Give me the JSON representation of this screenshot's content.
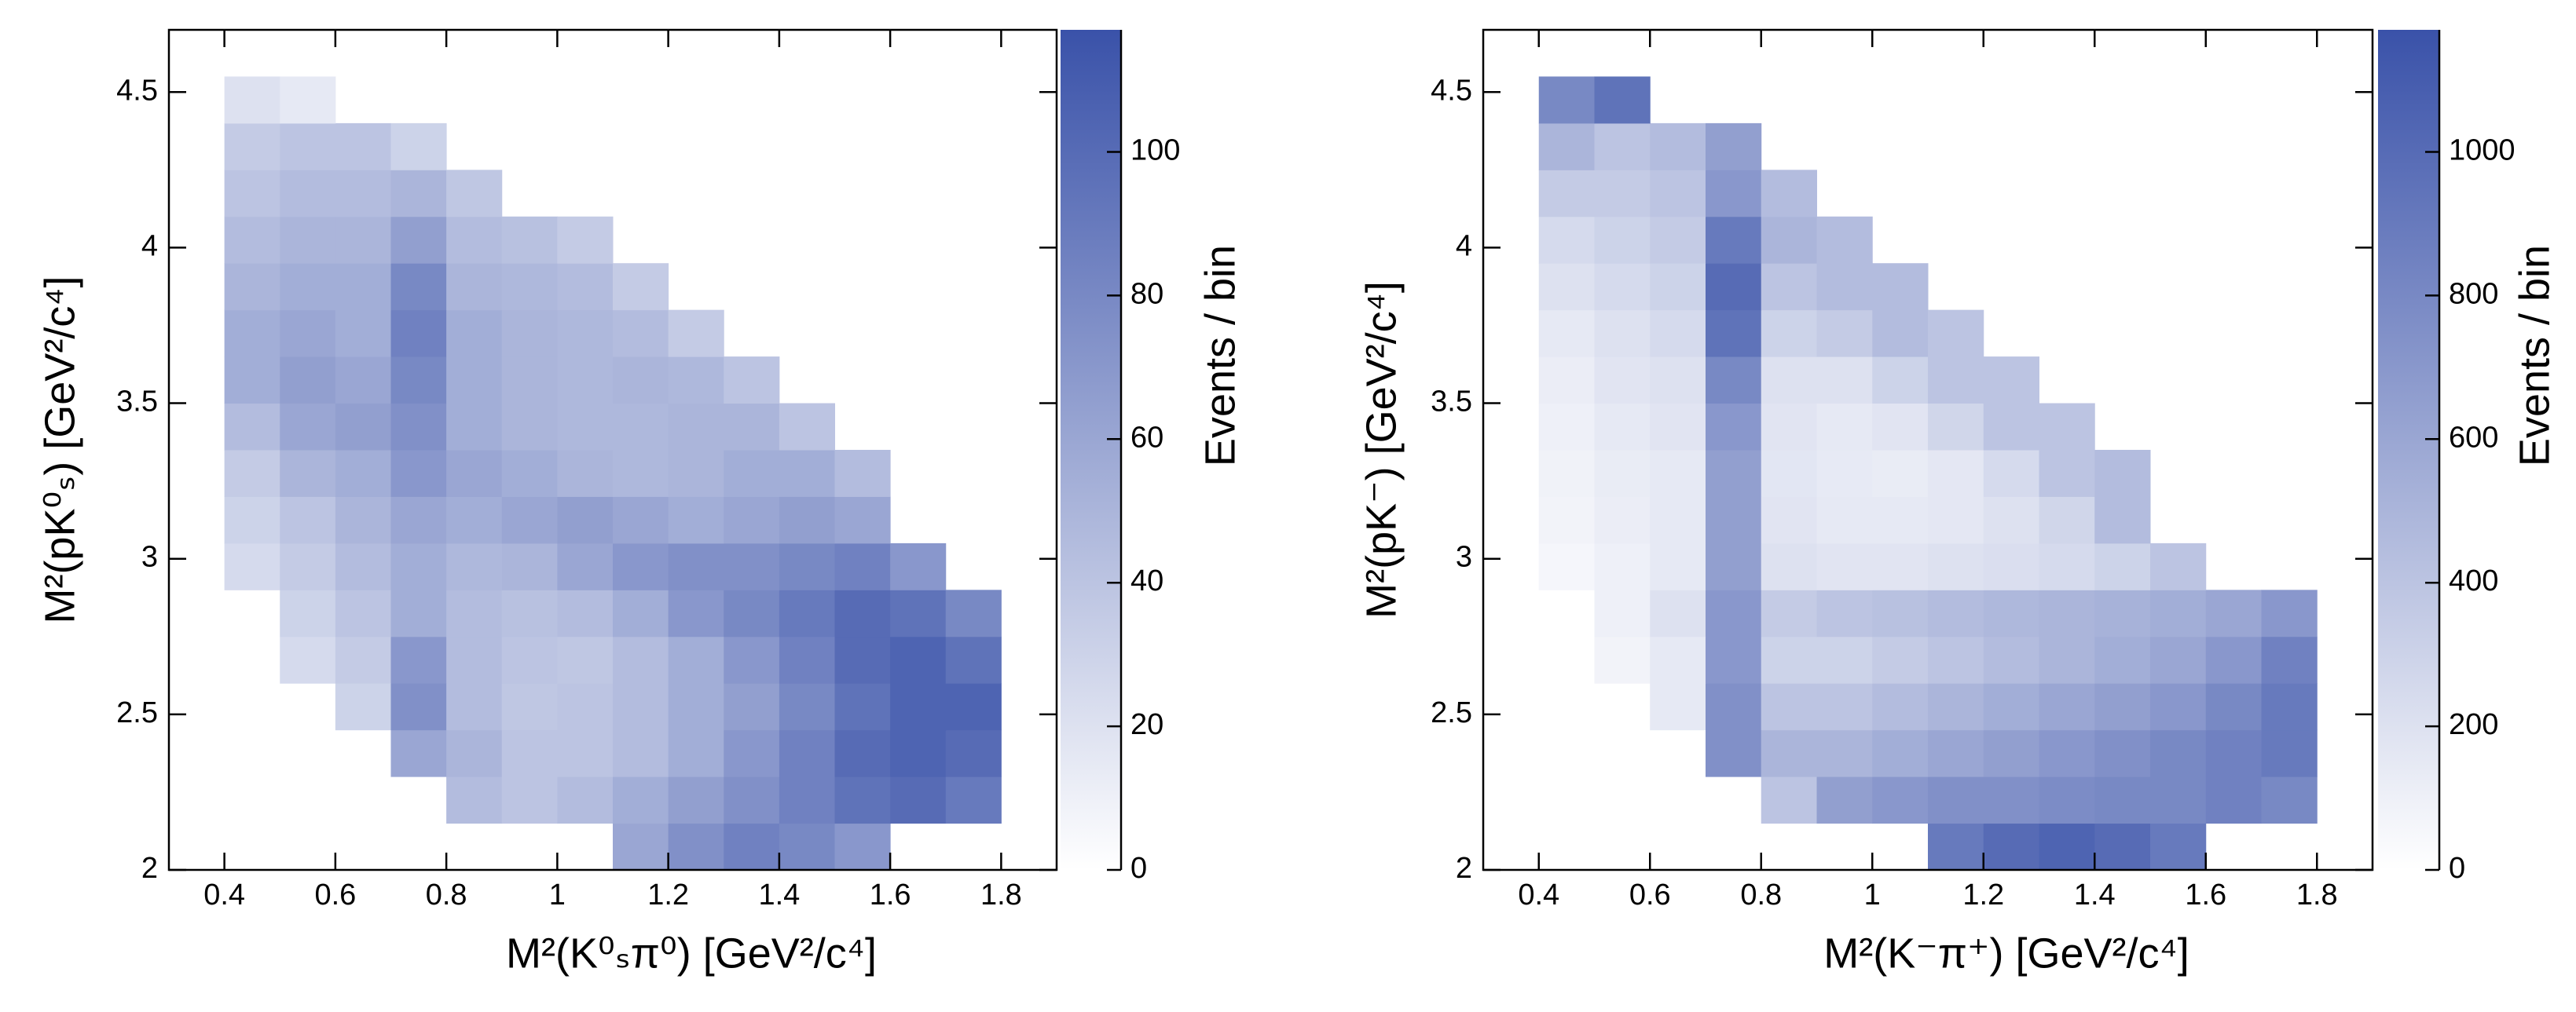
{
  "chart_data": [
    {
      "type": "heatmap",
      "xlabel": "M²(K⁰ₛπ⁰) [GeV²/c⁴]",
      "ylabel": "M²(pK⁰ₛ) [GeV²/c⁴]",
      "colorbar_label": "Events / bin",
      "xlim": [
        0.3,
        1.9
      ],
      "ylim": [
        2,
        4.7
      ],
      "xticks": [
        0.4,
        0.6,
        0.8,
        1,
        1.2,
        1.4,
        1.6,
        1.8
      ],
      "yticks": [
        2,
        2.5,
        3,
        3.5,
        4,
        4.5
      ],
      "clim": [
        0,
        117
      ],
      "cticks": [
        0,
        20,
        40,
        60,
        80,
        100
      ],
      "colormap": [
        "#ffffff",
        "#3a52a9"
      ],
      "xbins": [
        0.3,
        0.4,
        0.5,
        0.6,
        0.7,
        0.8,
        0.9,
        1.0,
        1.1,
        1.2,
        1.3,
        1.4,
        1.5,
        1.6,
        1.7,
        1.8,
        1.9
      ],
      "ybins": [
        2.0,
        2.15,
        2.3,
        2.45,
        2.6,
        2.75,
        2.9,
        3.05,
        3.2,
        3.35,
        3.5,
        3.65,
        3.8,
        3.95,
        4.1,
        4.25,
        4.4,
        4.55
      ],
      "values": [
        [
          null,
          null,
          null,
          null,
          null,
          null,
          null,
          null,
          60,
          75,
          85,
          80,
          70,
          null,
          null,
          null
        ],
        [
          null,
          null,
          null,
          null,
          null,
          45,
          40,
          45,
          55,
          65,
          75,
          85,
          95,
          100,
          90,
          null
        ],
        [
          null,
          null,
          null,
          null,
          60,
          50,
          40,
          40,
          45,
          55,
          70,
          85,
          100,
          105,
          100,
          null
        ],
        [
          null,
          null,
          null,
          30,
          75,
          45,
          38,
          40,
          45,
          55,
          65,
          80,
          95,
          105,
          105,
          null
        ],
        [
          null,
          null,
          25,
          35,
          70,
          45,
          40,
          38,
          45,
          55,
          70,
          85,
          100,
          105,
          95,
          null
        ],
        [
          null,
          null,
          30,
          40,
          55,
          45,
          42,
          45,
          55,
          70,
          80,
          90,
          100,
          95,
          80,
          null
        ],
        [
          null,
          25,
          35,
          45,
          55,
          48,
          50,
          60,
          70,
          75,
          75,
          80,
          85,
          70,
          null,
          null
        ],
        [
          null,
          30,
          40,
          50,
          60,
          55,
          60,
          65,
          60,
          55,
          60,
          65,
          60,
          null,
          null,
          null
        ],
        [
          null,
          35,
          50,
          55,
          70,
          60,
          55,
          50,
          48,
          50,
          55,
          55,
          45,
          null,
          null,
          null
        ],
        [
          null,
          45,
          60,
          65,
          75,
          55,
          50,
          48,
          48,
          50,
          50,
          40,
          null,
          null,
          null,
          null
        ],
        [
          null,
          55,
          65,
          60,
          80,
          55,
          50,
          48,
          50,
          48,
          40,
          null,
          null,
          null,
          null,
          null
        ],
        [
          null,
          55,
          60,
          55,
          85,
          55,
          50,
          48,
          45,
          35,
          null,
          null,
          null,
          null,
          null,
          null
        ],
        [
          null,
          50,
          55,
          55,
          80,
          50,
          48,
          45,
          35,
          null,
          null,
          null,
          null,
          null,
          null,
          null
        ],
        [
          null,
          45,
          50,
          50,
          65,
          45,
          42,
          35,
          null,
          null,
          null,
          null,
          null,
          null,
          null,
          null
        ],
        [
          null,
          40,
          45,
          45,
          50,
          38,
          null,
          null,
          null,
          null,
          null,
          null,
          null,
          null,
          null,
          null
        ],
        [
          null,
          35,
          40,
          40,
          30,
          null,
          null,
          null,
          null,
          null,
          null,
          null,
          null,
          null,
          null,
          null
        ],
        [
          null,
          20,
          15,
          null,
          null,
          null,
          null,
          null,
          null,
          null,
          null,
          null,
          null,
          null,
          null,
          null
        ]
      ]
    },
    {
      "type": "heatmap",
      "xlabel": "M²(K⁻π⁺) [GeV²/c⁴]",
      "ylabel": "M²(pK⁻) [GeV²/c⁴]",
      "colorbar_label": "Events / bin",
      "xlim": [
        0.3,
        1.9
      ],
      "ylim": [
        2,
        4.7
      ],
      "xticks": [
        0.4,
        0.6,
        0.8,
        1,
        1.2,
        1.4,
        1.6,
        1.8
      ],
      "yticks": [
        2,
        2.5,
        3,
        3.5,
        4,
        4.5
      ],
      "clim": [
        0,
        1170
      ],
      "cticks": [
        0,
        200,
        400,
        600,
        800,
        1000
      ],
      "colormap": [
        "#ffffff",
        "#3a52a9"
      ],
      "xbins": [
        0.3,
        0.4,
        0.5,
        0.6,
        0.7,
        0.8,
        0.9,
        1.0,
        1.1,
        1.2,
        1.3,
        1.4,
        1.5,
        1.6,
        1.7,
        1.8,
        1.9
      ],
      "ybins": [
        2.0,
        2.15,
        2.3,
        2.45,
        2.6,
        2.75,
        2.9,
        3.05,
        3.2,
        3.35,
        3.5,
        3.65,
        3.8,
        3.95,
        4.1,
        4.25,
        4.4,
        4.55
      ],
      "values": [
        [
          null,
          null,
          null,
          null,
          null,
          null,
          null,
          null,
          900,
          1000,
          1050,
          1000,
          900,
          null,
          null,
          null
        ],
        [
          null,
          null,
          null,
          null,
          null,
          400,
          650,
          700,
          750,
          750,
          780,
          800,
          800,
          850,
          800,
          null
        ],
        [
          null,
          null,
          null,
          null,
          750,
          500,
          500,
          550,
          600,
          650,
          700,
          750,
          800,
          850,
          900,
          null
        ],
        [
          null,
          null,
          null,
          150,
          750,
          400,
          400,
          450,
          500,
          550,
          600,
          650,
          700,
          800,
          900,
          null
        ],
        [
          null,
          null,
          80,
          150,
          700,
          300,
          300,
          350,
          400,
          450,
          500,
          550,
          600,
          700,
          850,
          null
        ],
        [
          null,
          null,
          100,
          200,
          700,
          350,
          400,
          420,
          450,
          480,
          500,
          520,
          550,
          600,
          700,
          null
        ],
        [
          null,
          60,
          100,
          150,
          650,
          200,
          180,
          180,
          200,
          220,
          250,
          300,
          400,
          null,
          null,
          null
        ],
        [
          null,
          80,
          120,
          150,
          650,
          180,
          150,
          150,
          160,
          200,
          280,
          450,
          null,
          null,
          null,
          null
        ],
        [
          null,
          90,
          130,
          150,
          650,
          170,
          140,
          130,
          160,
          250,
          400,
          450,
          null,
          null,
          null,
          null
        ],
        [
          null,
          100,
          150,
          180,
          700,
          180,
          150,
          180,
          280,
          400,
          400,
          null,
          null,
          null,
          null,
          null
        ],
        [
          null,
          120,
          180,
          200,
          800,
          200,
          200,
          300,
          400,
          400,
          null,
          null,
          null,
          null,
          null,
          null
        ],
        [
          null,
          150,
          200,
          250,
          950,
          300,
          350,
          450,
          400,
          null,
          null,
          null,
          null,
          null,
          null,
          null
        ],
        [
          null,
          200,
          250,
          300,
          1000,
          400,
          450,
          450,
          null,
          null,
          null,
          null,
          null,
          null,
          null,
          null
        ],
        [
          null,
          250,
          300,
          350,
          900,
          500,
          450,
          null,
          null,
          null,
          null,
          null,
          null,
          null,
          null,
          null
        ],
        [
          null,
          350,
          350,
          400,
          700,
          450,
          null,
          null,
          null,
          null,
          null,
          null,
          null,
          null,
          null,
          null
        ],
        [
          null,
          500,
          400,
          450,
          650,
          null,
          null,
          null,
          null,
          null,
          null,
          null,
          null,
          null,
          null,
          null
        ],
        [
          null,
          800,
          950,
          null,
          null,
          null,
          null,
          null,
          null,
          null,
          null,
          null,
          null,
          null,
          null,
          null
        ]
      ]
    }
  ]
}
